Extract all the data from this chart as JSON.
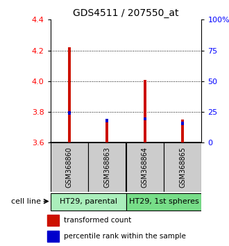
{
  "title": "GDS4511 / 207550_at",
  "samples": [
    "GSM368860",
    "GSM368863",
    "GSM368864",
    "GSM368865"
  ],
  "red_values": [
    4.22,
    3.74,
    4.01,
    3.75
  ],
  "blue_values": [
    3.795,
    3.745,
    3.755,
    3.725
  ],
  "ylim": [
    3.6,
    4.4
  ],
  "yticks_left": [
    3.6,
    3.8,
    4.0,
    4.2,
    4.4
  ],
  "yticks_right": [
    0,
    25,
    50,
    75,
    100
  ],
  "ytick_labels_right": [
    "0",
    "25",
    "50",
    "75",
    "100%"
  ],
  "bar_base": 3.6,
  "groups": [
    {
      "label": "HT29, parental",
      "samples": [
        0,
        1
      ],
      "color": "#aaeebb"
    },
    {
      "label": "HT29, 1st spheres",
      "samples": [
        2,
        3
      ],
      "color": "#77dd88"
    }
  ],
  "sample_box_color": "#cccccc",
  "red_color": "#cc1100",
  "blue_color": "#0000cc",
  "legend_red": "transformed count",
  "legend_blue": "percentile rank within the sample",
  "cell_line_label": "cell line"
}
